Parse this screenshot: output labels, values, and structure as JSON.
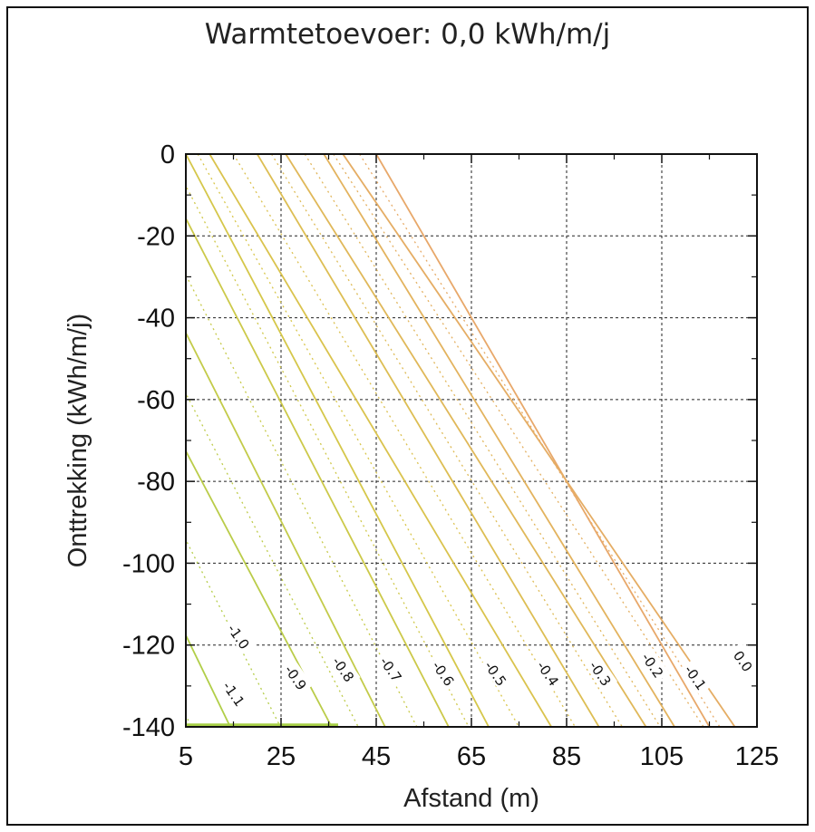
{
  "chart_data": {
    "type": "contour",
    "title": "Warmtetoevoer: 0,0 kWh/m/j",
    "xlabel": "Afstand (m)",
    "ylabel": "Onttrekking (kWh/m/j)",
    "xlim": [
      5,
      125
    ],
    "ylim": [
      -140,
      0
    ],
    "x_ticks": [
      "5",
      "25",
      "45",
      "65",
      "85",
      "105",
      "125"
    ],
    "y_ticks": [
      "0",
      "-20",
      "-40",
      "-60",
      "-80",
      "-100",
      "-120",
      "-140"
    ],
    "grid": true,
    "contours": [
      {
        "label": "0.0",
        "x_at_top": 45,
        "slope_dy_dx": -2.0
      },
      {
        "label": "-0.1",
        "x_at_top": 38,
        "slope_dy_dx": -1.7
      },
      {
        "label": "-0.2",
        "x_at_top": 34,
        "slope_dy_dx": -1.9
      },
      {
        "label": "-0.3",
        "x_at_top": 26,
        "slope_dy_dx": -1.85
      },
      {
        "label": "-0.4",
        "x_at_top": 20,
        "slope_dy_dx": -1.95
      },
      {
        "label": "-0.5",
        "x_at_top": 10,
        "slope_dy_dx": -1.95
      },
      {
        "label": "-0.6",
        "x_at_top": 5,
        "slope_dy_dx": -2.2
      },
      {
        "label": "-0.7",
        "x_at_top": -2,
        "slope_dy_dx": -2.25
      },
      {
        "label": "-0.8",
        "x_at_top": -14,
        "slope_dy_dx": -2.3
      },
      {
        "label": "-0.9",
        "x_at_top": -28,
        "slope_dy_dx": -2.2
      },
      {
        "label": "-1.0",
        "x_at_top": -44,
        "slope_dy_dx": -2.4
      },
      {
        "label": "-1.1",
        "x_at_top": -58,
        "slope_dy_dx": -2.5
      }
    ],
    "label_points": [
      {
        "label": "0.0",
        "x": 122,
        "y": -124
      },
      {
        "label": "-0.1",
        "x": 112,
        "y": -128
      },
      {
        "label": "-0.2",
        "x": 103,
        "y": -125
      },
      {
        "label": "-0.3",
        "x": 92,
        "y": -127
      },
      {
        "label": "-0.4",
        "x": 81,
        "y": -127
      },
      {
        "label": "-0.5",
        "x": 70,
        "y": -127
      },
      {
        "label": "-0.6",
        "x": 59,
        "y": -127
      },
      {
        "label": "-0.7",
        "x": 48,
        "y": -126
      },
      {
        "label": "-0.8",
        "x": 38,
        "y": -126
      },
      {
        "label": "-0.9",
        "x": 28,
        "y": -128
      },
      {
        "label": "-1.0",
        "x": 16,
        "y": -118
      },
      {
        "label": "-1.1",
        "x": 15,
        "y": -132
      }
    ],
    "colors": {
      "warm": "#e8a86a",
      "mid": "#d9c64a",
      "cool": "#a8d048",
      "grid": "#222222"
    }
  }
}
